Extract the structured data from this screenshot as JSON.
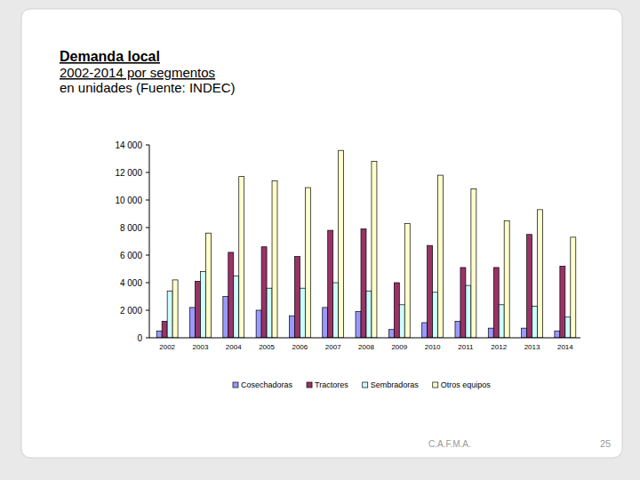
{
  "chart_data": {
    "type": "bar",
    "title": "Demanda local",
    "subtitle": "2002-2014 por segmentos",
    "annotations": [
      "en unidades (Fuente: INDEC)",
      "C.A.F.M.A.",
      "25"
    ],
    "categories": [
      "2002",
      "2003",
      "2004",
      "2005",
      "2006",
      "2007",
      "2008",
      "2009",
      "2010",
      "2011",
      "2012",
      "2013",
      "2014"
    ],
    "series": [
      {
        "name": "Cosechadoras",
        "color": "#9999ff",
        "values": [
          500,
          2200,
          3000,
          2000,
          1600,
          2200,
          1900,
          600,
          1100,
          1200,
          700,
          700,
          500
        ]
      },
      {
        "name": "Tractores",
        "color": "#993366",
        "values": [
          1200,
          4100,
          6200,
          6600,
          5900,
          7800,
          7900,
          4000,
          6700,
          5100,
          5100,
          7500,
          5200
        ]
      },
      {
        "name": "Sembradoras",
        "color": "#ccffff",
        "values": [
          3400,
          4800,
          4500,
          3600,
          3600,
          4000,
          3400,
          2400,
          3300,
          3800,
          2400,
          2300,
          1500
        ]
      },
      {
        "name": "Otros equipos",
        "color": "#ffffcc",
        "values": [
          4200,
          7600,
          11700,
          11400,
          10900,
          13600,
          12800,
          8300,
          11800,
          10800,
          8500,
          9300,
          7300
        ]
      }
    ],
    "ylim": [
      0,
      14000
    ],
    "yticks": [
      0,
      {
        "value": 2000,
        "label": "2 000"
      },
      {
        "value": 4000,
        "label": "4 000"
      },
      {
        "value": 6000,
        "label": "6 000"
      },
      {
        "value": 8000,
        "label": "8 000"
      },
      {
        "value": 10000,
        "label": "10 000"
      },
      {
        "value": 12000,
        "label": "12 000"
      },
      {
        "value": 14000,
        "label": "14 000"
      }
    ],
    "grid": false,
    "legend": "bottom"
  }
}
